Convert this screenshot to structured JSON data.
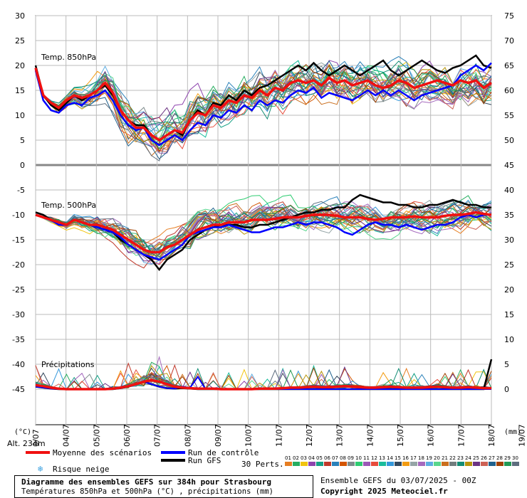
{
  "chart_data": {
    "type": "line",
    "x_dates": [
      "04/07",
      "05/07",
      "06/07",
      "07/07",
      "08/07",
      "09/07",
      "10/07",
      "11/07",
      "12/07",
      "13/07",
      "14/07",
      "15/07",
      "16/07",
      "17/07",
      "18/07",
      "19/07"
    ],
    "x_first_label": "0/07",
    "panel_labels": {
      "t850": "Temp. 850hPa",
      "t500": "Temp. 500hPa",
      "precip": "Précipitations"
    },
    "left_axis_ticks": [
      "30",
      "25",
      "20",
      "15",
      "10",
      "5",
      "0",
      "-5",
      "-10",
      "-15",
      "-20",
      "-25",
      "-30",
      "-35",
      "-40",
      "-45"
    ],
    "right_axis_ticks": [
      "75",
      "70",
      "65",
      "60",
      "55",
      "50",
      "45",
      "40",
      "35",
      "30",
      "25",
      "20",
      "15",
      "10",
      "5",
      "0"
    ],
    "left_unit": "(°C)",
    "right_unit": "(mm)",
    "altitude": "Alt. 234m",
    "ensemble_count_label": "30 Perts.",
    "series_850_mean": [
      19.5,
      14,
      12.5,
      11.5,
      13,
      14,
      13.5,
      14,
      15,
      16.5,
      14.5,
      11,
      9,
      7.5,
      7.5,
      6,
      5,
      6,
      7,
      6.5,
      9,
      10.5,
      10,
      12,
      11.5,
      13,
      12.5,
      14,
      13.5,
      15,
      14,
      15.5,
      15,
      16.5,
      17,
      16.5,
      17,
      16,
      17.5,
      16.5,
      17,
      16,
      16.5,
      17,
      16,
      15.5,
      16,
      17,
      16.5,
      15.5,
      16,
      16.5,
      17,
      16.5,
      16,
      17,
      16.5,
      17,
      15.5,
      16.5
    ],
    "series_850_control": [
      19,
      13,
      11,
      10.5,
      12,
      12.5,
      12,
      13.5,
      14,
      15,
      13,
      10,
      8,
      7,
      7.5,
      5,
      4,
      5,
      6,
      5,
      7,
      8.5,
      8,
      10,
      9.5,
      11,
      10.5,
      12,
      11,
      13,
      12,
      13,
      12.5,
      14,
      15,
      14.5,
      15.5,
      13.5,
      14.5,
      14,
      13.5,
      13,
      14,
      15,
      14,
      15,
      14,
      15,
      14,
      13,
      14,
      14.5,
      15,
      15.5,
      16,
      18,
      19,
      20,
      19,
      20.5
    ],
    "series_850_gfs": [
      20,
      14,
      12,
      11,
      12.5,
      14,
      13,
      14,
      15,
      16,
      14,
      11,
      9,
      8,
      8,
      6,
      5,
      6,
      7,
      6,
      9,
      11,
      10,
      12.5,
      12,
      14,
      13,
      15,
      14,
      15.5,
      16,
      17,
      18,
      19,
      20,
      19,
      20.5,
      19,
      18,
      19,
      20,
      19,
      18,
      19,
      20,
      21,
      19,
      18,
      19,
      20,
      21,
      20,
      19,
      18.5,
      19.5,
      20,
      21,
      22,
      20,
      19.5
    ],
    "series_500_mean": [
      -10,
      -10.5,
      -11,
      -11.5,
      -12,
      -11,
      -11.5,
      -12,
      -12,
      -12.5,
      -13,
      -14,
      -15,
      -16,
      -17,
      -17.5,
      -17.5,
      -16.5,
      -16,
      -15,
      -14,
      -13,
      -12.5,
      -12,
      -12,
      -11.5,
      -11.5,
      -11.5,
      -11,
      -11,
      -11,
      -10.8,
      -10.5,
      -10.5,
      -10.5,
      -10.2,
      -10,
      -10,
      -10,
      -10.2,
      -10.5,
      -10.5,
      -10.5,
      -10.8,
      -11,
      -10.8,
      -10.5,
      -10.5,
      -10.5,
      -10.3,
      -10.5,
      -10.5,
      -10.5,
      -10.2,
      -10,
      -10,
      -9.8,
      -9.5,
      -9.8,
      -10
    ],
    "series_500_control": [
      -10,
      -10.5,
      -11,
      -12,
      -12,
      -11,
      -11.5,
      -12,
      -12.5,
      -13,
      -13.5,
      -14.5,
      -16,
      -17,
      -18,
      -18.5,
      -19,
      -18,
      -17,
      -16,
      -14,
      -13.5,
      -13,
      -12.5,
      -12.5,
      -12,
      -12.5,
      -13,
      -13.5,
      -13.5,
      -13,
      -12.5,
      -12.5,
      -12,
      -11.5,
      -12,
      -11.5,
      -11.5,
      -12,
      -12.5,
      -13.5,
      -14,
      -13,
      -12,
      -11.5,
      -12,
      -12,
      -12.5,
      -12,
      -12.5,
      -13,
      -12.5,
      -12,
      -12,
      -11.5,
      -10.5,
      -10,
      -10.5,
      -10,
      -10
    ],
    "series_500_gfs": [
      -9.5,
      -10,
      -11,
      -11.5,
      -12,
      -11,
      -11.5,
      -12,
      -12.5,
      -13,
      -13.5,
      -15,
      -16,
      -17,
      -18,
      -19,
      -21,
      -19,
      -18,
      -17,
      -15,
      -14,
      -13,
      -12.5,
      -12,
      -12,
      -12,
      -12.5,
      -12.5,
      -12,
      -12,
      -11.5,
      -11,
      -10.5,
      -10,
      -9.5,
      -9.5,
      -9,
      -9,
      -8.5,
      -8.5,
      -7,
      -6,
      -6.5,
      -7,
      -7.5,
      -7.5,
      -8,
      -8,
      -8.5,
      -8.5,
      -8,
      -8,
      -7.5,
      -7,
      -7.5,
      -8,
      -8,
      -8.5,
      -8.5
    ],
    "series_precip_mean": [
      0.8,
      0.6,
      0.3,
      0.1,
      0,
      0,
      0,
      0,
      0,
      0,
      0.1,
      0.3,
      0.6,
      1,
      1.5,
      1.8,
      1.5,
      1,
      0.5,
      0.3,
      0.2,
      0.1,
      0.1,
      0.1,
      0,
      0,
      0,
      0,
      0,
      0.1,
      0.1,
      0.1,
      0.2,
      0.3,
      0.3,
      0.4,
      0.5,
      0.4,
      0.4,
      0.5,
      0.6,
      0.5,
      0.4,
      0.3,
      0.3,
      0.4,
      0.5,
      0.4,
      0.3,
      0.3,
      0.3,
      0.4,
      0.5,
      0.4,
      0.3,
      0.3,
      0.4,
      0.3,
      0.2,
      0.2
    ],
    "series_precip_control": [
      0.5,
      0.3,
      0.1,
      0,
      0,
      0,
      0,
      0,
      0,
      0,
      0,
      0.2,
      0.5,
      1,
      1.5,
      1,
      0.5,
      0.2,
      0.1,
      0.5,
      0.3,
      2.5,
      0,
      0,
      0,
      0,
      0,
      0,
      0,
      0.2,
      0.1,
      0,
      0,
      0,
      0,
      0,
      0,
      0,
      0,
      0,
      0,
      0,
      0,
      0,
      0,
      0,
      0,
      0,
      0,
      0,
      0,
      0,
      0,
      0,
      0,
      0,
      0,
      0,
      0,
      0
    ],
    "series_precip_gfs": [
      0.5,
      0.3,
      0.1,
      0,
      0,
      0,
      0,
      0,
      0,
      0,
      0,
      0.2,
      0.5,
      1,
      1.5,
      1,
      0.5,
      0.2,
      0.1,
      0.2,
      0.1,
      0,
      0,
      0,
      0,
      0,
      0,
      0,
      0,
      0,
      0,
      0,
      0,
      0,
      0,
      0,
      0,
      0,
      0,
      0,
      0,
      0,
      0,
      0,
      0,
      0,
      0,
      0,
      0,
      0,
      0,
      0,
      0,
      0,
      0,
      0,
      0,
      0,
      0,
      6
    ],
    "legend": {
      "mean": "Moyenne des scénarios",
      "control": "Run de contrôle",
      "gfs": "Run GFS",
      "snow": "Risque neige"
    },
    "member_ids": [
      "01",
      "02",
      "03",
      "04",
      "05",
      "06",
      "07",
      "08",
      "09",
      "10",
      "11",
      "12",
      "13",
      "14",
      "15",
      "16",
      "17",
      "18",
      "19",
      "20",
      "21",
      "22",
      "23",
      "24",
      "25",
      "26",
      "27",
      "28",
      "29",
      "30"
    ],
    "member_colors": [
      "#e67e22",
      "#27ae60",
      "#f1c40f",
      "#8e44ad",
      "#16a085",
      "#c0392b",
      "#2980b9",
      "#d35400",
      "#7f8c8d",
      "#2ecc71",
      "#9b59b6",
      "#e74c3c",
      "#1abc9c",
      "#3498db",
      "#34495e",
      "#f39c12",
      "#95a5a6",
      "#a569bd",
      "#5dade2",
      "#58d68d",
      "#ca6f1e",
      "#717d7e",
      "#138d75",
      "#b7950b",
      "#6c3483",
      "#cd6155",
      "#1f618d",
      "#a04000",
      "#229954",
      "#5d6d7e"
    ]
  },
  "footer": {
    "title": "Diagramme des ensembles GEFS sur 384h pour Strasbourg",
    "subtitle": "Températures 850hPa et 500hPa (°C) , précipitations (mm)",
    "run_info": "Ensemble GEFS du 03/07/2025 - 00Z",
    "copyright": "Copyright 2025 Meteociel.fr"
  }
}
